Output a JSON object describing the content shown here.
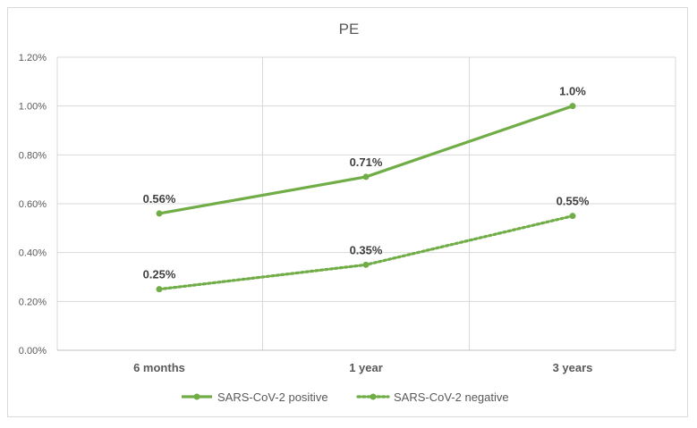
{
  "chart_data": {
    "type": "line",
    "title": "PE",
    "categories": [
      "6 months",
      "1 year",
      "3 years"
    ],
    "series": [
      {
        "name": "SARS-CoV-2 positive",
        "values": [
          0.56,
          0.71,
          1.0
        ],
        "labels": [
          "0.56%",
          "0.71%",
          "1.0%"
        ],
        "line_style": "solid",
        "color": "#70ad47"
      },
      {
        "name": "SARS-CoV-2 negative",
        "values": [
          0.25,
          0.35,
          0.55
        ],
        "labels": [
          "0.25%",
          "0.35%",
          "0.55%"
        ],
        "line_style": "dotted",
        "color": "#70ad47"
      }
    ],
    "ylim": [
      0,
      1.2
    ],
    "yticks": [
      0,
      0.2,
      0.4,
      0.6,
      0.8,
      1.0,
      1.2
    ],
    "ytick_labels": [
      "0.00%",
      "0.20%",
      "0.40%",
      "0.60%",
      "0.80%",
      "1.00%",
      "1.20%"
    ],
    "xlabel": "",
    "ylabel": "",
    "grid": true,
    "legend_position": "bottom"
  }
}
